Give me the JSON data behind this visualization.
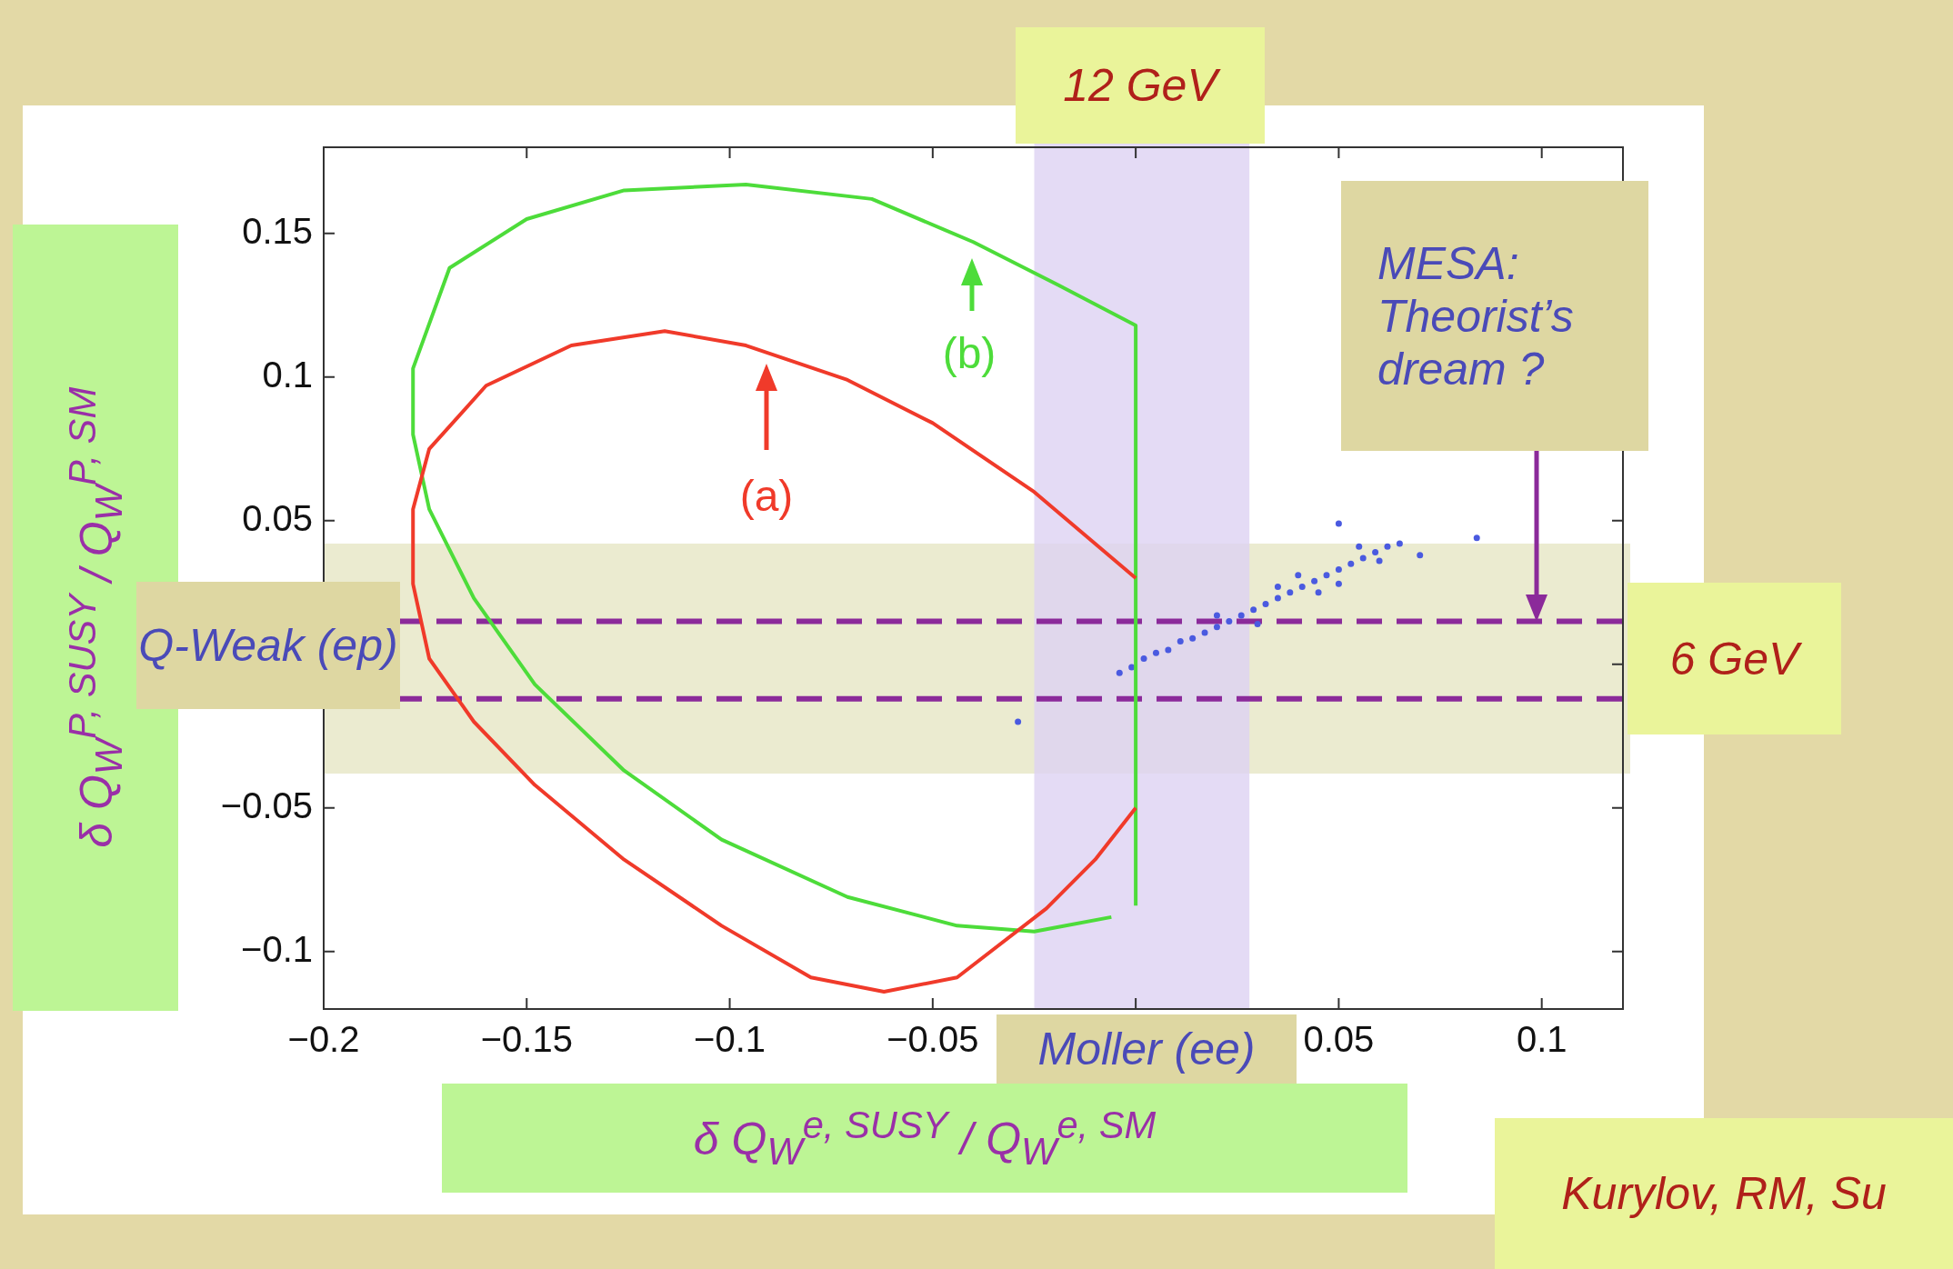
{
  "chart_data": {
    "type": "line",
    "xlabel": "δ Q$_{W}$$^{e, SUSY}$ / Q$_{W}$$^{e, SM}$",
    "ylabel": "δ Q$_{W}$$^{P, SUSY}$ / Q$_{W}$$^{P, SM}$",
    "xlim": [
      -0.2,
      0.12
    ],
    "xticks": [
      -0.2,
      -0.15,
      -0.1,
      -0.05,
      {
        "value": 0,
        "label": null
      },
      0.05,
      0.1
    ],
    "ylim": [
      -0.12,
      0.18
    ],
    "yticks": [
      -0.1,
      -0.05,
      {
        "value": 0,
        "label": null
      },
      0.05,
      0.1,
      0.15
    ],
    "grid": false,
    "legend": false,
    "marker": "none",
    "line_style": "solid",
    "series": [
      {
        "type": "line",
        "color": "#f03a2a",
        "x": [
          0,
          -0.025,
          -0.05,
          -0.071,
          -0.096,
          -0.116,
          -0.139,
          -0.16,
          -0.174,
          -0.178,
          -0.178,
          -0.174,
          -0.163,
          -0.148,
          -0.126,
          -0.102,
          -0.08,
          -0.062,
          -0.044,
          -0.022,
          -0.01,
          0
        ],
        "values": [
          0.03,
          0.06,
          0.084,
          0.099,
          0.111,
          0.116,
          0.111,
          0.097,
          0.075,
          0.054,
          0.028,
          0.002,
          -0.02,
          -0.042,
          -0.068,
          -0.091,
          -0.109,
          -0.114,
          -0.109,
          -0.085,
          -0.068,
          -0.05
        ]
      },
      {
        "type": "line",
        "color": "#4ddc3a",
        "x": [
          0,
          0,
          -0.019,
          -0.04,
          -0.065,
          -0.096,
          -0.126,
          -0.15,
          -0.169,
          -0.178,
          -0.178,
          -0.174,
          -0.163,
          -0.148,
          -0.126,
          -0.102,
          -0.071,
          -0.044,
          -0.025,
          -0.006
        ],
        "values": [
          -0.084,
          0.118,
          0.132,
          0.147,
          0.162,
          0.167,
          0.165,
          0.155,
          0.138,
          0.103,
          0.08,
          0.054,
          0.023,
          -0.007,
          -0.037,
          -0.061,
          -0.081,
          -0.091,
          -0.093,
          -0.088
        ]
      },
      {
        "type": "scatter",
        "marker": "circle",
        "color": "#4a5ae0",
        "x": [
          -0.004,
          -0.001,
          0.002,
          0.005,
          0.008,
          0.011,
          0.014,
          0.017,
          0.02,
          0.023,
          0.026,
          0.029,
          0.032,
          0.035,
          0.038,
          0.041,
          0.044,
          0.047,
          0.05,
          0.053,
          0.056,
          0.059,
          0.062,
          0.065,
          0.02,
          0.03,
          0.04,
          0.05,
          0.06,
          0.035,
          0.045,
          0.055,
          0.05,
          0.084,
          -0.029,
          0.07
        ],
        "values": [
          -0.003,
          -0.001,
          0.002,
          0.004,
          0.005,
          0.008,
          0.009,
          0.011,
          0.013,
          0.015,
          0.017,
          0.019,
          0.021,
          0.023,
          0.025,
          0.027,
          0.029,
          0.031,
          0.033,
          0.035,
          0.037,
          0.039,
          0.041,
          0.042,
          0.017,
          0.014,
          0.031,
          0.028,
          0.036,
          0.027,
          0.025,
          0.041,
          0.049,
          0.044,
          -0.02,
          0.038
        ]
      }
    ],
    "bands": [
      {
        "axis": "y",
        "from": -0.038,
        "to": 0.042,
        "label": "Q-Weak (ep)",
        "color": "#e6e6c4"
      },
      {
        "axis": "x",
        "from": -0.025,
        "to": 0.028,
        "label": "Moller (ee)",
        "color": "#ddd2f2"
      }
    ],
    "ref_lines": [
      {
        "axis": "y",
        "value": 0.015,
        "color": "#8b2a9a",
        "line_style": "dashed"
      },
      {
        "axis": "y",
        "value": -0.012,
        "color": "#8b2a9a",
        "line_style": "dashed"
      }
    ],
    "annotations": [
      "12 GeV",
      "6 GeV",
      "MESA: Theorist’s dream ?",
      "Kurylov, RM, Su",
      "(a)",
      "(b)"
    ]
  }
}
